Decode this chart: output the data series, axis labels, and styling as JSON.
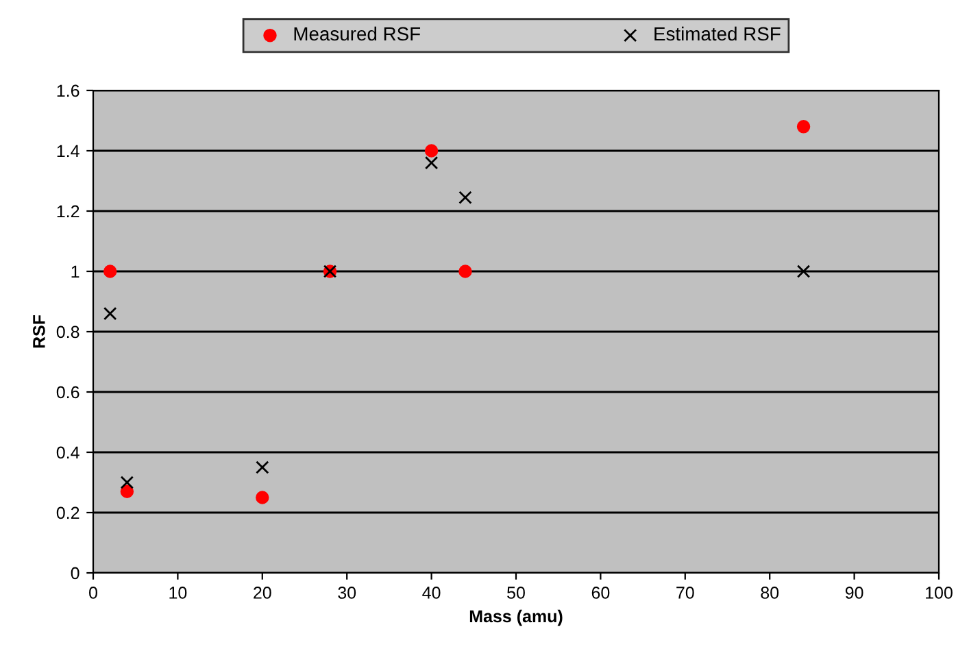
{
  "chart_data": {
    "type": "scatter",
    "xlabel": "Mass (amu)",
    "ylabel": "RSF",
    "xlim": [
      0,
      100
    ],
    "xticks": [
      0,
      10,
      20,
      30,
      40,
      50,
      60,
      70,
      80,
      90,
      100
    ],
    "ylim": [
      0,
      1.6
    ],
    "yticks": [
      0,
      0.2,
      0.4,
      0.6,
      0.8,
      1,
      1.2,
      1.4,
      1.6
    ],
    "grid": "y",
    "legend": "top",
    "series": [
      {
        "name": "Measured RSF",
        "color": "#ff0000",
        "marker": "circle",
        "x": [
          2,
          4,
          20,
          28,
          40,
          44,
          84
        ],
        "values": [
          1.0,
          0.27,
          0.25,
          1.0,
          1.4,
          1.0,
          1.48
        ]
      },
      {
        "name": "Estimated RSF",
        "color": "#000000",
        "marker": "cross",
        "x": [
          2,
          4,
          20,
          28,
          40,
          44,
          84
        ],
        "values": [
          0.86,
          0.3,
          0.35,
          1.0,
          1.36,
          1.245,
          1.0
        ]
      }
    ]
  }
}
